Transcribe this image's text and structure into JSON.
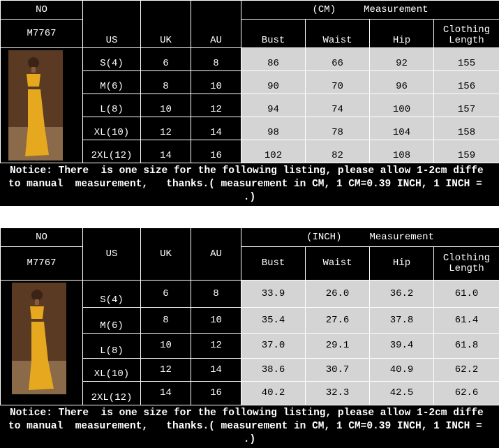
{
  "tables": [
    {
      "no_label": "NO",
      "model": "M7767",
      "unit": "(CM)",
      "measurement_label": "Measurement",
      "columns": [
        "US",
        "UK",
        "AU",
        "Bust",
        "Waist",
        "Hip",
        "Clothing Length"
      ],
      "rows": [
        [
          "S(4)",
          "6",
          "8",
          "86",
          "66",
          "92",
          "155"
        ],
        [
          "M(6)",
          "8",
          "10",
          "90",
          "70",
          "96",
          "156"
        ],
        [
          "L(8)",
          "10",
          "12",
          "94",
          "74",
          "100",
          "157"
        ],
        [
          "XL(10)",
          "12",
          "14",
          "98",
          "78",
          "104",
          "158"
        ],
        [
          "2XL(12)",
          "14",
          "16",
          "102",
          "82",
          "108",
          "159"
        ]
      ],
      "notice": [
        "Notice: There  is one size for the following listing, please allow 1-2cm diffe",
        "to manual  measurement,   thanks.( measurement in CM, 1 CM=0.39 INCH, 1 INCH =",
        ".)"
      ]
    },
    {
      "no_label": "NO",
      "model": "M7767",
      "unit": "(INCH)",
      "measurement_label": "Measurement",
      "columns": [
        "US",
        "UK",
        "AU",
        "Bust",
        "Waist",
        "Hip",
        "Clothing Length"
      ],
      "rows": [
        [
          "S(4)",
          "6",
          "8",
          "33.9",
          "26.0",
          "36.2",
          "61.0"
        ],
        [
          "M(6)",
          "8",
          "10",
          "35.4",
          "27.6",
          "37.8",
          "61.4"
        ],
        [
          "L(8)",
          "10",
          "12",
          "37.0",
          "29.1",
          "39.4",
          "61.8"
        ],
        [
          "XL(10)",
          "12",
          "14",
          "38.6",
          "30.7",
          "40.9",
          "62.2"
        ],
        [
          "2XL(12)",
          "14",
          "16",
          "40.2",
          "32.3",
          "42.5",
          "62.6"
        ]
      ],
      "notice": [
        "Notice: There  is one size for the following listing, please allow 1-2cm diffe",
        "to manual  measurement,   thanks.( measurement in CM, 1 CM=0.39 INCH, 1 INCH =",
        ".)"
      ]
    }
  ]
}
